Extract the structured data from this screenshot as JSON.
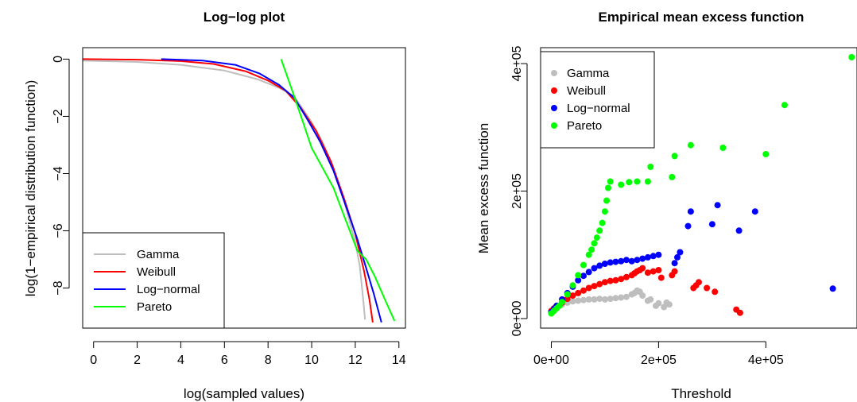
{
  "chart_data": [
    {
      "type": "line",
      "title": "Log−log plot",
      "xlabel": "log(sampled values)",
      "ylabel": "log(1−empirical distribution function)",
      "xlim": [
        -0.5,
        14.3
      ],
      "ylim": [
        -9.4,
        0.4
      ],
      "xticks": [
        0,
        2,
        4,
        6,
        8,
        10,
        12,
        14
      ],
      "yticks": [
        0,
        -2,
        -4,
        -6,
        -8
      ],
      "xtick_labels": [
        "0",
        "2",
        "4",
        "6",
        "8",
        "10",
        "12",
        "14"
      ],
      "ytick_labels": [
        "0",
        "−2",
        "−4",
        "−6",
        "−8"
      ],
      "legend_position": "bottom-left",
      "series": [
        {
          "name": "Gamma",
          "color": "#BEBEBE",
          "points": [
            [
              -0.5,
              -0.05
            ],
            [
              2,
              -0.1
            ],
            [
              4,
              -0.2
            ],
            [
              6,
              -0.4
            ],
            [
              7.5,
              -0.7
            ],
            [
              8.5,
              -1.0
            ],
            [
              9.2,
              -1.3
            ],
            [
              10,
              -2.2
            ],
            [
              10.5,
              -2.9
            ],
            [
              11,
              -3.8
            ],
            [
              11.5,
              -5.0
            ],
            [
              12,
              -6.4
            ],
            [
              12.2,
              -7.2
            ],
            [
              12.35,
              -8.3
            ],
            [
              12.45,
              -9.1
            ]
          ]
        },
        {
          "name": "Weibull",
          "color": "#FF0000",
          "points": [
            [
              -0.5,
              0
            ],
            [
              2,
              -0.02
            ],
            [
              4,
              -0.07
            ],
            [
              5.5,
              -0.17
            ],
            [
              7,
              -0.43
            ],
            [
              8,
              -0.75
            ],
            [
              8.8,
              -1.1
            ],
            [
              9.5,
              -1.7
            ],
            [
              10.2,
              -2.5
            ],
            [
              10.9,
              -3.6
            ],
            [
              11.5,
              -4.9
            ],
            [
              12,
              -6.1
            ],
            [
              12.4,
              -7.4
            ],
            [
              12.65,
              -8.4
            ],
            [
              12.8,
              -9.2
            ]
          ]
        },
        {
          "name": "Log−normal",
          "color": "#0000FF",
          "points": [
            [
              3.1,
              0
            ],
            [
              5,
              -0.05
            ],
            [
              6.5,
              -0.2
            ],
            [
              7.6,
              -0.5
            ],
            [
              8.5,
              -0.9
            ],
            [
              9.2,
              -1.35
            ],
            [
              9.8,
              -2.1
            ],
            [
              10.4,
              -2.9
            ],
            [
              11,
              -3.9
            ],
            [
              11.6,
              -5.2
            ],
            [
              12.1,
              -6.3
            ],
            [
              12.5,
              -7.3
            ],
            [
              12.85,
              -8.2
            ],
            [
              13.2,
              -9.2
            ]
          ]
        },
        {
          "name": "Pareto",
          "color": "#00FF00",
          "points": [
            [
              8.6,
              0
            ],
            [
              9.2,
              -1.3
            ],
            [
              9.6,
              -2.2
            ],
            [
              10,
              -3.1
            ],
            [
              10.5,
              -3.8
            ],
            [
              11,
              -4.5
            ],
            [
              11.4,
              -5.3
            ],
            [
              11.8,
              -6.1
            ],
            [
              12.1,
              -6.7
            ],
            [
              12.5,
              -7.0
            ],
            [
              12.9,
              -7.6
            ],
            [
              13.3,
              -8.3
            ],
            [
              13.8,
              -9.15
            ]
          ]
        }
      ]
    },
    {
      "type": "scatter",
      "title": "Empirical mean excess function",
      "xlabel": "Threshold",
      "ylabel": "Mean excess function",
      "xlim": [
        -20000,
        570000
      ],
      "ylim": [
        -15000,
        425000
      ],
      "xticks": [
        0,
        200000,
        400000
      ],
      "yticks": [
        0,
        200000,
        400000
      ],
      "xtick_labels": [
        "0e+00",
        "2e+05",
        "4e+05"
      ],
      "ytick_labels": [
        "0e+00",
        "2e+05",
        "4e+05"
      ],
      "legend_position": "top-left",
      "series": [
        {
          "name": "Gamma",
          "color": "#BEBEBE",
          "points": [
            [
              0,
              10000
            ],
            [
              5000,
              15000
            ],
            [
              10000,
              18000
            ],
            [
              20000,
              22000
            ],
            [
              30000,
              25000
            ],
            [
              40000,
              27000
            ],
            [
              50000,
              28000
            ],
            [
              60000,
              29000
            ],
            [
              70000,
              30000
            ],
            [
              80000,
              30000
            ],
            [
              90000,
              31000
            ],
            [
              100000,
              30000
            ],
            [
              110000,
              31000
            ],
            [
              120000,
              32000
            ],
            [
              130000,
              33000
            ],
            [
              140000,
              34000
            ],
            [
              150000,
              38000
            ],
            [
              155000,
              40000
            ],
            [
              160000,
              44000
            ],
            [
              165000,
              42000
            ],
            [
              170000,
              36000
            ],
            [
              180000,
              28000
            ],
            [
              185000,
              30000
            ],
            [
              195000,
              20000
            ],
            [
              200000,
              24000
            ],
            [
              210000,
              18000
            ],
            [
              215000,
              25000
            ],
            [
              220000,
              22000
            ]
          ]
        },
        {
          "name": "Weibull",
          "color": "#FF0000",
          "points": [
            [
              0,
              12000
            ],
            [
              5000,
              16000
            ],
            [
              10000,
              20000
            ],
            [
              20000,
              25000
            ],
            [
              30000,
              31000
            ],
            [
              40000,
              36000
            ],
            [
              50000,
              40000
            ],
            [
              60000,
              44000
            ],
            [
              70000,
              48000
            ],
            [
              80000,
              51000
            ],
            [
              90000,
              54000
            ],
            [
              100000,
              57000
            ],
            [
              110000,
              59000
            ],
            [
              120000,
              60000
            ],
            [
              130000,
              62000
            ],
            [
              140000,
              65000
            ],
            [
              150000,
              68000
            ],
            [
              155000,
              71000
            ],
            [
              160000,
              74000
            ],
            [
              165000,
              76000
            ],
            [
              170000,
              79000
            ],
            [
              180000,
              72000
            ],
            [
              190000,
              74000
            ],
            [
              200000,
              76000
            ],
            [
              205000,
              64000
            ],
            [
              225000,
              68000
            ],
            [
              230000,
              74000
            ],
            [
              265000,
              48000
            ],
            [
              270000,
              52000
            ],
            [
              275000,
              57000
            ],
            [
              290000,
              48000
            ],
            [
              305000,
              42000
            ],
            [
              345000,
              14000
            ],
            [
              352000,
              9000
            ]
          ]
        },
        {
          "name": "Log−normal",
          "color": "#0000FF",
          "points": [
            [
              0,
              10000
            ],
            [
              5000,
              15000
            ],
            [
              10000,
              20000
            ],
            [
              20000,
              30000
            ],
            [
              30000,
              40000
            ],
            [
              40000,
              50000
            ],
            [
              50000,
              60000
            ],
            [
              60000,
              67000
            ],
            [
              70000,
              73000
            ],
            [
              80000,
              79000
            ],
            [
              90000,
              83000
            ],
            [
              100000,
              86000
            ],
            [
              110000,
              88000
            ],
            [
              120000,
              89000
            ],
            [
              130000,
              90000
            ],
            [
              140000,
              92000
            ],
            [
              150000,
              90000
            ],
            [
              160000,
              92000
            ],
            [
              170000,
              94000
            ],
            [
              180000,
              96000
            ],
            [
              190000,
              98000
            ],
            [
              200000,
              100000
            ],
            [
              230000,
              87000
            ],
            [
              235000,
              96000
            ],
            [
              240000,
              104000
            ],
            [
              255000,
              145000
            ],
            [
              260000,
              168000
            ],
            [
              300000,
              148000
            ],
            [
              310000,
              178000
            ],
            [
              350000,
              138000
            ],
            [
              380000,
              168000
            ],
            [
              525000,
              47000
            ]
          ]
        },
        {
          "name": "Pareto",
          "color": "#00FF00",
          "points": [
            [
              0,
              8000
            ],
            [
              5000,
              12000
            ],
            [
              10000,
              16000
            ],
            [
              15000,
              20000
            ],
            [
              20000,
              26000
            ],
            [
              30000,
              38000
            ],
            [
              40000,
              52000
            ],
            [
              50000,
              68000
            ],
            [
              60000,
              84000
            ],
            [
              70000,
              100000
            ],
            [
              75000,
              108000
            ],
            [
              80000,
              118000
            ],
            [
              85000,
              127000
            ],
            [
              90000,
              138000
            ],
            [
              95000,
              150000
            ],
            [
              100000,
              168000
            ],
            [
              103000,
              185000
            ],
            [
              106000,
              205000
            ],
            [
              110000,
              215000
            ],
            [
              130000,
              210000
            ],
            [
              145000,
              214000
            ],
            [
              160000,
              215000
            ],
            [
              180000,
              215000
            ],
            [
              185000,
              238000
            ],
            [
              225000,
              222000
            ],
            [
              230000,
              255000
            ],
            [
              260000,
              272000
            ],
            [
              320000,
              268000
            ],
            [
              400000,
              258000
            ],
            [
              435000,
              335000
            ],
            [
              560000,
              410000
            ]
          ]
        }
      ]
    }
  ]
}
